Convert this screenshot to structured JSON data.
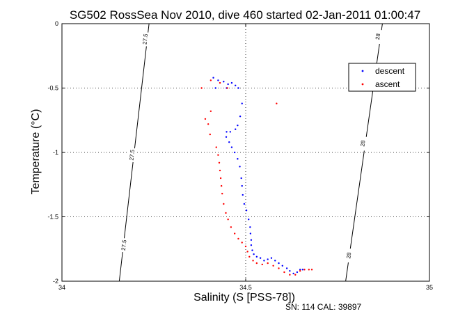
{
  "chart_data": {
    "type": "scatter",
    "title": "SG502 RossSea Nov 2010, dive 460 started 02-Jan-2011 01:00:47",
    "xlabel": "Salinity (S [PSS-78])",
    "ylabel": "Temperature (°C)",
    "footer": "SN: 114  CAL: 39897",
    "xlim": [
      34,
      35
    ],
    "ylim": [
      -2,
      0
    ],
    "x_ticks": [
      34,
      34.5,
      35
    ],
    "y_ticks": [
      0,
      -0.5,
      -1,
      -1.5,
      -2
    ],
    "x_tick_labels": [
      "34",
      "34.5",
      "35"
    ],
    "y_tick_labels": [
      "0",
      "-0.5",
      "-1",
      "-1.5",
      "-2"
    ],
    "grid": true,
    "legend_position": "top-right",
    "isopycnals": [
      {
        "label": "27.5",
        "from": [
          34.156,
          -2.0
        ],
        "to": [
          34.237,
          0.0
        ],
        "label_positions": [
          [
            34.168,
            -1.72
          ],
          [
            34.19,
            -1.02
          ],
          [
            34.226,
            -0.12
          ]
        ]
      },
      {
        "label": "28",
        "from": [
          34.772,
          -2.0
        ],
        "to": [
          34.872,
          0.0
        ],
        "label_positions": [
          [
            34.78,
            -1.8
          ],
          [
            34.818,
            -0.93
          ],
          [
            34.859,
            -0.1
          ]
        ]
      }
    ],
    "series": [
      {
        "name": "descent",
        "color": "#0000ff",
        "points": [
          [
            34.412,
            -0.42
          ],
          [
            34.425,
            -0.44
          ],
          [
            34.44,
            -0.45
          ],
          [
            34.452,
            -0.47
          ],
          [
            34.462,
            -0.46
          ],
          [
            34.472,
            -0.48
          ],
          [
            34.48,
            -0.5
          ],
          [
            34.448,
            -0.5
          ],
          [
            34.418,
            -0.5
          ],
          [
            34.49,
            -0.62
          ],
          [
            34.485,
            -0.72
          ],
          [
            34.478,
            -0.79
          ],
          [
            34.472,
            -0.82
          ],
          [
            34.458,
            -0.84
          ],
          [
            34.448,
            -0.84
          ],
          [
            34.447,
            -0.88
          ],
          [
            34.455,
            -0.92
          ],
          [
            34.462,
            -0.96
          ],
          [
            34.47,
            -1.0
          ],
          [
            34.478,
            -1.05
          ],
          [
            34.484,
            -1.11
          ],
          [
            34.488,
            -1.2
          ],
          [
            34.49,
            -1.26
          ],
          [
            34.492,
            -1.33
          ],
          [
            34.496,
            -1.4
          ],
          [
            34.502,
            -1.45
          ],
          [
            34.508,
            -1.52
          ],
          [
            34.512,
            -1.58
          ],
          [
            34.513,
            -1.63
          ],
          [
            34.515,
            -1.68
          ],
          [
            34.515,
            -1.72
          ],
          [
            34.518,
            -1.76
          ],
          [
            34.522,
            -1.79
          ],
          [
            34.53,
            -1.81
          ],
          [
            34.54,
            -1.82
          ],
          [
            34.55,
            -1.84
          ],
          [
            34.56,
            -1.83
          ],
          [
            34.57,
            -1.82
          ],
          [
            34.58,
            -1.84
          ],
          [
            34.59,
            -1.86
          ],
          [
            34.6,
            -1.88
          ],
          [
            34.612,
            -1.9
          ],
          [
            34.62,
            -1.92
          ],
          [
            34.63,
            -1.94
          ],
          [
            34.64,
            -1.93
          ],
          [
            34.648,
            -1.91
          ],
          [
            34.655,
            -1.91
          ]
        ]
      },
      {
        "name": "ascent",
        "color": "#ff0000",
        "points": [
          [
            34.38,
            -0.5
          ],
          [
            34.405,
            -0.44
          ],
          [
            34.43,
            -0.46
          ],
          [
            34.45,
            -0.5
          ],
          [
            34.405,
            -0.68
          ],
          [
            34.39,
            -0.74
          ],
          [
            34.398,
            -0.78
          ],
          [
            34.403,
            -0.86
          ],
          [
            34.42,
            -0.96
          ],
          [
            34.425,
            -1.02
          ],
          [
            34.428,
            -1.08
          ],
          [
            34.43,
            -1.14
          ],
          [
            34.432,
            -1.2
          ],
          [
            34.434,
            -1.26
          ],
          [
            34.436,
            -1.32
          ],
          [
            34.44,
            -1.4
          ],
          [
            34.446,
            -1.47
          ],
          [
            34.452,
            -1.52
          ],
          [
            34.46,
            -1.58
          ],
          [
            34.47,
            -1.63
          ],
          [
            34.48,
            -1.67
          ],
          [
            34.49,
            -1.7
          ],
          [
            34.5,
            -1.73
          ],
          [
            34.505,
            -1.77
          ],
          [
            34.51,
            -1.81
          ],
          [
            34.52,
            -1.84
          ],
          [
            34.53,
            -1.86
          ],
          [
            34.545,
            -1.87
          ],
          [
            34.56,
            -1.86
          ],
          [
            34.575,
            -1.88
          ],
          [
            34.59,
            -1.9
          ],
          [
            34.605,
            -1.93
          ],
          [
            34.62,
            -1.95
          ],
          [
            34.635,
            -1.95
          ],
          [
            34.648,
            -1.92
          ],
          [
            34.66,
            -1.91
          ],
          [
            34.672,
            -1.91
          ],
          [
            34.68,
            -1.91
          ],
          [
            34.584,
            -0.62
          ]
        ]
      }
    ]
  }
}
